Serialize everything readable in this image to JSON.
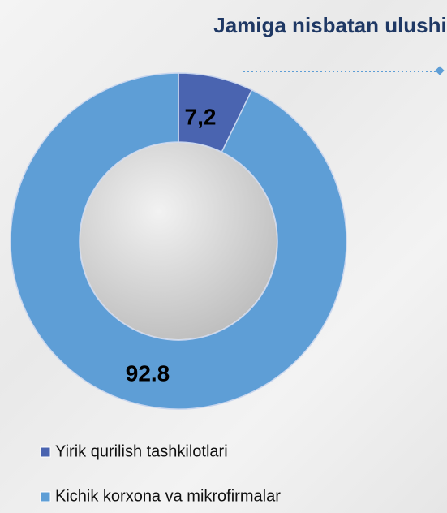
{
  "chart_data": {
    "type": "donut",
    "title": "Jamiga nisbatan ulushi",
    "categories": [
      "Yirik qurilish tashkilotlari",
      "Kichik korxona va mikrofirmalar"
    ],
    "values": [
      7.2,
      92.8
    ],
    "value_labels": [
      "7,2",
      "92.8"
    ],
    "colors": [
      "#4a64b0",
      "#5e9ed6"
    ],
    "legend": "bottom"
  }
}
